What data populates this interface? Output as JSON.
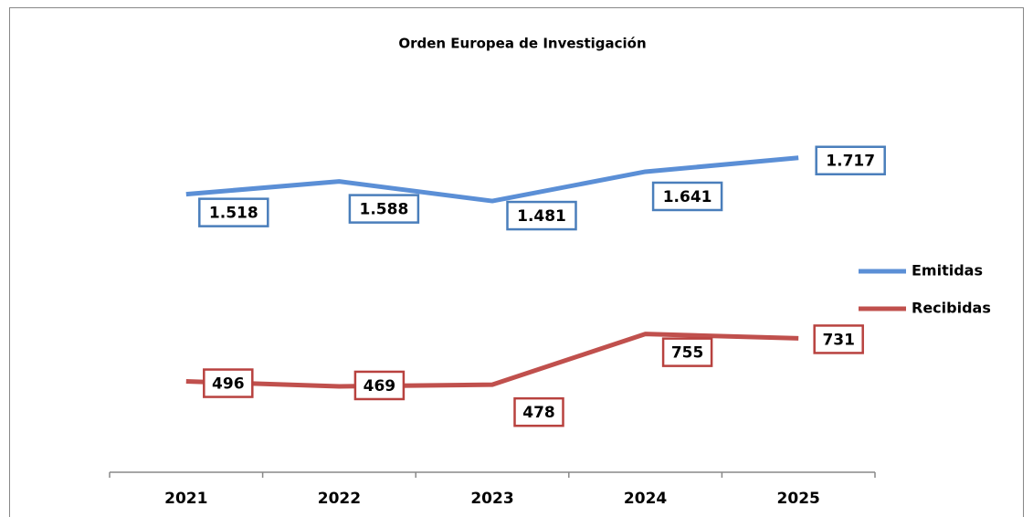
{
  "chart_data": {
    "type": "line",
    "title": "Orden Europea de Investigación",
    "categories": [
      "2021",
      "2022",
      "2023",
      "2024",
      "2025"
    ],
    "ylim": [
      0,
      2000
    ],
    "series": [
      {
        "name": "Emitidas",
        "color": "#5b8fd6",
        "values": [
          1518,
          1588,
          1481,
          1641,
          1717
        ],
        "value_labels": [
          "1.518",
          "1.588",
          "1.481",
          "1.641",
          "1.717"
        ]
      },
      {
        "name": "Recibidas",
        "color": "#c0504d",
        "values": [
          496,
          469,
          478,
          755,
          731
        ],
        "value_labels": [
          "496",
          "469",
          "478",
          "755",
          "731"
        ]
      }
    ],
    "legend": "right"
  }
}
